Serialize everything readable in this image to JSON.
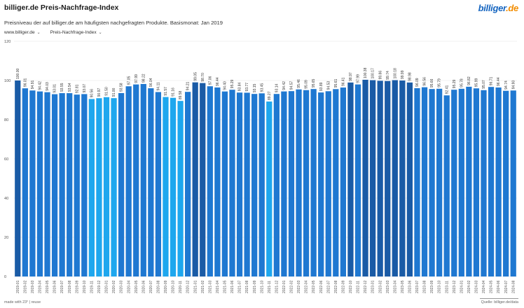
{
  "header": {
    "title": "billiger.de Preis-Nachfrage-Index",
    "logo_main": "billiger",
    "logo_suffix": ".de",
    "subtitle": "Preisniveau der auf billiger.de am häufigsten nachgefragten Produkte. Basismonat: Jan 2019"
  },
  "filters": {
    "source": "www.billiger.de",
    "index": "Preis-Nachfrage-Index"
  },
  "footer": {
    "left": "made with 23° | reuse",
    "right": "Quelle: billiger.de/data"
  },
  "colors": {
    "dark": "#1a5ba6",
    "mid": "#1f78d1",
    "light": "#1ea7ee",
    "grid": "#e6e6e6",
    "axis_text": "#555555"
  },
  "chart_data": {
    "type": "bar",
    "ylim": [
      0,
      120
    ],
    "yticks": [
      0,
      20,
      40,
      60,
      80,
      100,
      120
    ],
    "grid": true,
    "categories": [
      "2019-01",
      "2019-02",
      "2019-03",
      "2019-04",
      "2019-05",
      "2019-06",
      "2019-07",
      "2019-08",
      "2019-09",
      "2019-10",
      "2019-11",
      "2019-12",
      "2020-01",
      "2020-02",
      "2020-03",
      "2020-04",
      "2020-05",
      "2020-06",
      "2020-07",
      "2020-08",
      "2020-09",
      "2020-10",
      "2020-11",
      "2020-12",
      "2021-01",
      "2021-02",
      "2021-03",
      "2021-04",
      "2021-05",
      "2021-06",
      "2021-07",
      "2021-08",
      "2021-09",
      "2021-10",
      "2021-11",
      "2021-12",
      "2022-01",
      "2022-02",
      "2022-03",
      "2022-04",
      "2022-05",
      "2022-06",
      "2022-07",
      "2022-08",
      "2022-09",
      "2022-10",
      "2022-11",
      "2022-12",
      "2023-01",
      "2023-02",
      "2023-03",
      "2023-04",
      "2023-05",
      "2023-06",
      "2023-07",
      "2023-08",
      "2023-09",
      "2023-10",
      "2023-11",
      "2023-12",
      "2024-01",
      "2024-02",
      "2024-03",
      "2024-04",
      "2024-05",
      "2024-06",
      "2024-07",
      "2024-08"
    ],
    "labels": [
      "100.00",
      "96.01",
      "94.91",
      "94.42",
      "94.03",
      "93.01",
      "93.55",
      "93.54",
      "92.81",
      "93.07",
      "90.56",
      "90.97",
      "91.50",
      "91.00",
      "93.58",
      "97.05",
      "97.99",
      "98.22",
      "96.04",
      "94.11",
      "91.57",
      "91.16",
      "89.58",
      "94.21",
      "99.05",
      "98.70",
      "97.06",
      "96.44",
      "94.40",
      "95.29",
      "93.84",
      "93.77",
      "93.15",
      "93.45",
      "89.27",
      "93.14",
      "94.42",
      "94.57",
      "95.46",
      "95.09",
      "95.65",
      "93.89",
      "94.53",
      "95.61",
      "96.41",
      "98.97",
      "97.99",
      "100.38",
      "100.17",
      "99.86",
      "99.74",
      "100.18",
      "99.99",
      "98.98",
      "96.09",
      "96.56",
      "95.66",
      "95.79",
      "92.41",
      "95.29",
      "95.78",
      "96.82",
      "95.99",
      "95.07",
      "96.71",
      "96.44",
      "94.74",
      "94.90"
    ],
    "values": [
      100.0,
      96.01,
      94.91,
      94.42,
      94.03,
      93.01,
      93.55,
      93.54,
      92.81,
      93.07,
      90.56,
      90.97,
      91.5,
      91.0,
      93.58,
      97.05,
      97.99,
      98.22,
      96.04,
      94.11,
      91.57,
      91.16,
      89.58,
      94.21,
      99.05,
      98.7,
      97.06,
      96.44,
      94.4,
      95.29,
      93.84,
      93.77,
      93.15,
      93.45,
      89.27,
      93.14,
      94.42,
      94.57,
      95.46,
      95.09,
      95.65,
      93.89,
      94.53,
      95.61,
      96.41,
      98.97,
      97.99,
      100.38,
      100.17,
      99.86,
      99.74,
      100.18,
      99.99,
      98.98,
      96.09,
      96.56,
      95.66,
      95.79,
      92.41,
      95.29,
      95.78,
      96.82,
      95.99,
      95.07,
      96.71,
      96.44,
      94.74,
      94.9
    ]
  }
}
